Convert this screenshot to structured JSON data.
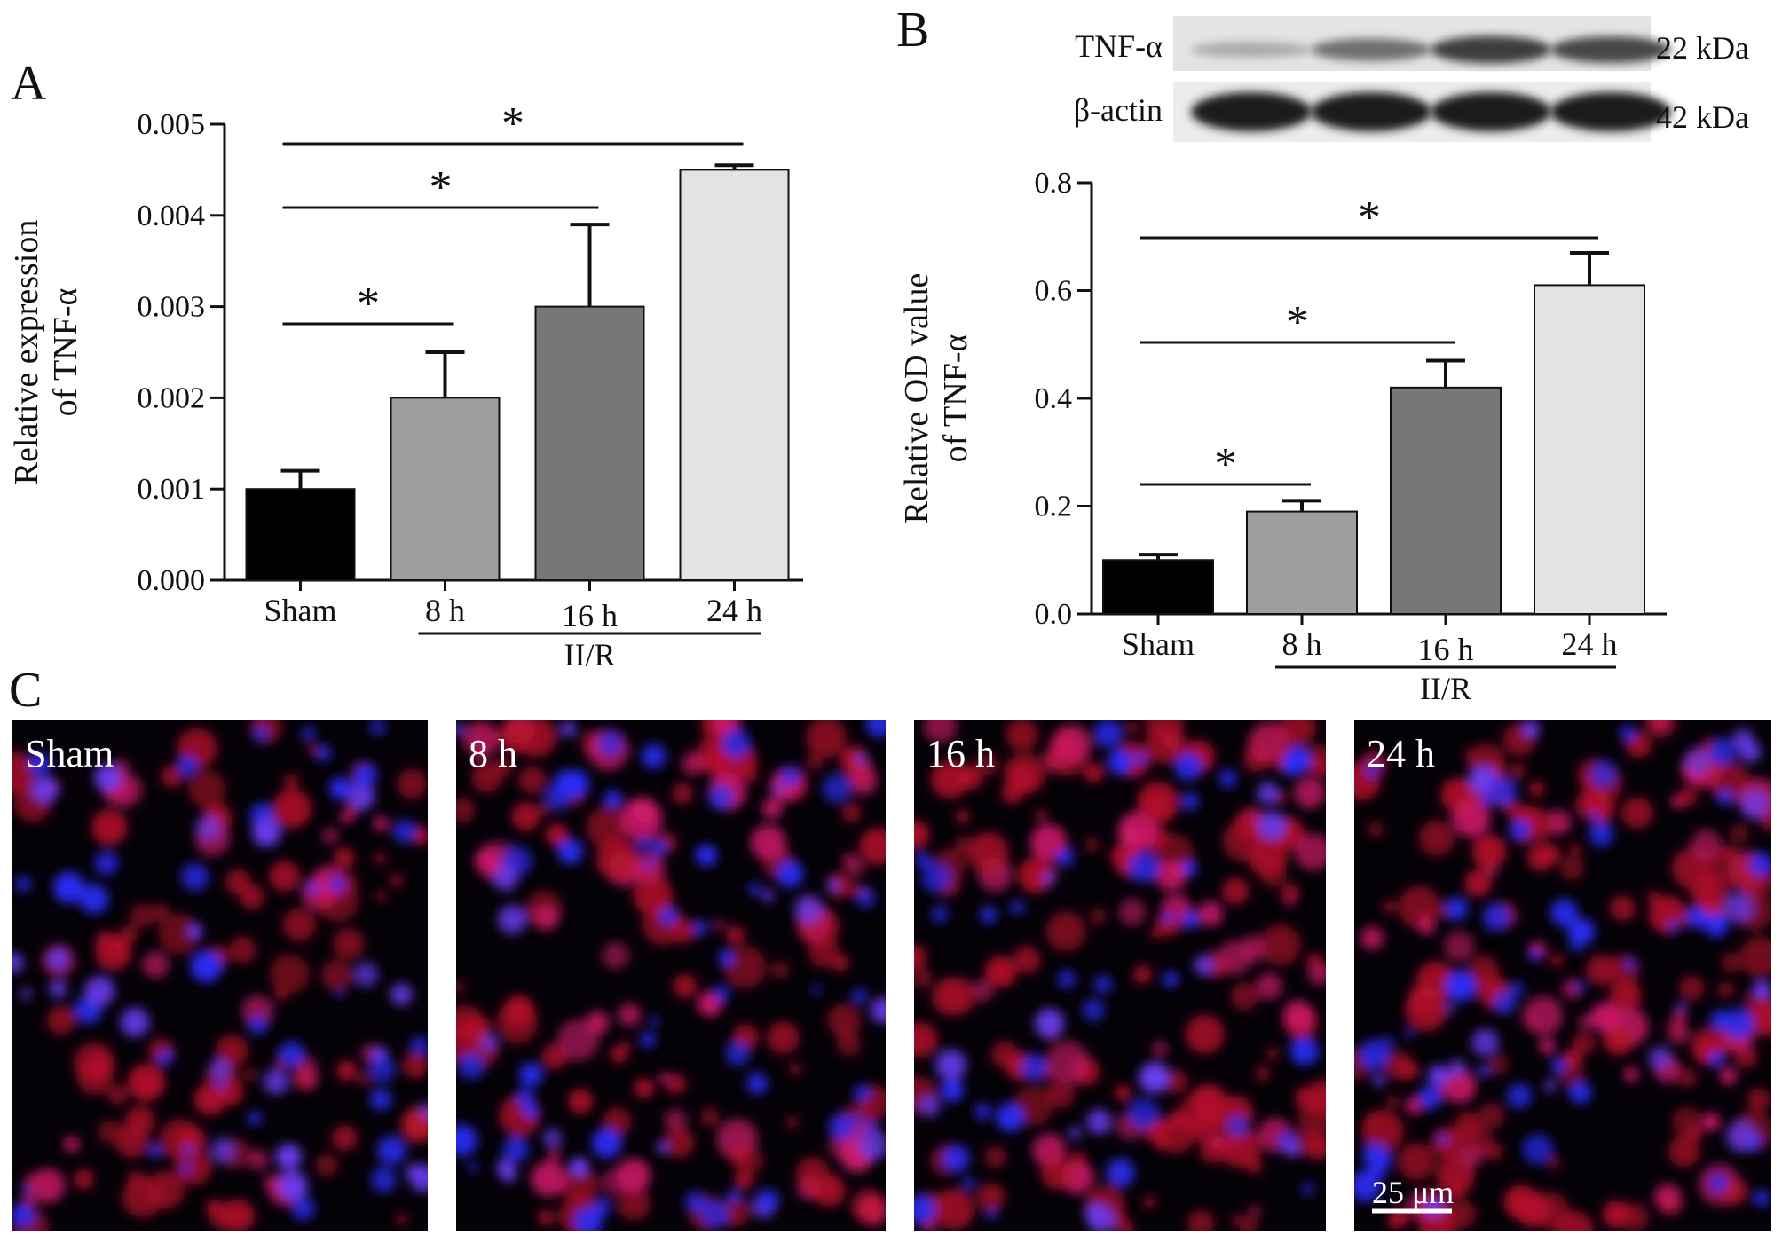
{
  "panels": {
    "a_letter": "A",
    "b_letter": "B",
    "c_letter": "C"
  },
  "chart_data": [
    {
      "type": "bar",
      "panel": "A",
      "categories": [
        "Sham",
        "8 h",
        "16 h",
        "24 h"
      ],
      "values": [
        0.001,
        0.002,
        0.003,
        0.0045
      ],
      "errors": [
        0.0002,
        0.0005,
        0.0009,
        5e-05
      ],
      "bar_colors": [
        "#000000",
        "#9e9e9e",
        "#777777",
        "#e3e3e3"
      ],
      "ylabel_line1": "Relative expression",
      "ylabel_line2": "of TNF-α",
      "ylim": [
        0,
        0.005
      ],
      "yticks": [
        "0.000",
        "0.001",
        "0.002",
        "0.003",
        "0.004",
        "0.005"
      ],
      "group_label": "II/R",
      "significance": [
        {
          "from": 0,
          "to": 1,
          "label": "*"
        },
        {
          "from": 0,
          "to": 2,
          "label": "*"
        },
        {
          "from": 0,
          "to": 3,
          "label": "*"
        }
      ]
    },
    {
      "type": "bar",
      "panel": "B",
      "categories": [
        "Sham",
        "8 h",
        "16 h",
        "24 h"
      ],
      "values": [
        0.1,
        0.19,
        0.42,
        0.61
      ],
      "errors": [
        0.01,
        0.02,
        0.05,
        0.06
      ],
      "bar_colors": [
        "#000000",
        "#9e9e9e",
        "#777777",
        "#e3e3e3"
      ],
      "ylabel_line1": "Relative OD value",
      "ylabel_line2": "of TNF-α",
      "ylim": [
        0,
        0.8
      ],
      "yticks": [
        "0.0",
        "0.2",
        "0.4",
        "0.6",
        "0.8"
      ],
      "group_label": "II/R",
      "significance": [
        {
          "from": 0,
          "to": 1,
          "label": "*"
        },
        {
          "from": 0,
          "to": 2,
          "label": "*"
        },
        {
          "from": 0,
          "to": 3,
          "label": "*"
        }
      ]
    }
  ],
  "blot": {
    "rows": [
      {
        "name": "TNF-α",
        "size": "22 kDa",
        "intensities": [
          0.25,
          0.55,
          0.8,
          0.75
        ]
      },
      {
        "name": "β-actin",
        "size": "42 kDa",
        "intensities": [
          0.95,
          0.95,
          0.95,
          0.95
        ]
      }
    ]
  },
  "micrographs": [
    {
      "label": "Sham",
      "red_density": 0.35,
      "blue_density": 0.5
    },
    {
      "label": "8 h",
      "red_density": 0.55,
      "blue_density": 0.6
    },
    {
      "label": "16 h",
      "red_density": 0.75,
      "blue_density": 0.35
    },
    {
      "label": "24 h",
      "red_density": 0.9,
      "blue_density": 0.55
    }
  ],
  "scale_bar": "25 μm"
}
